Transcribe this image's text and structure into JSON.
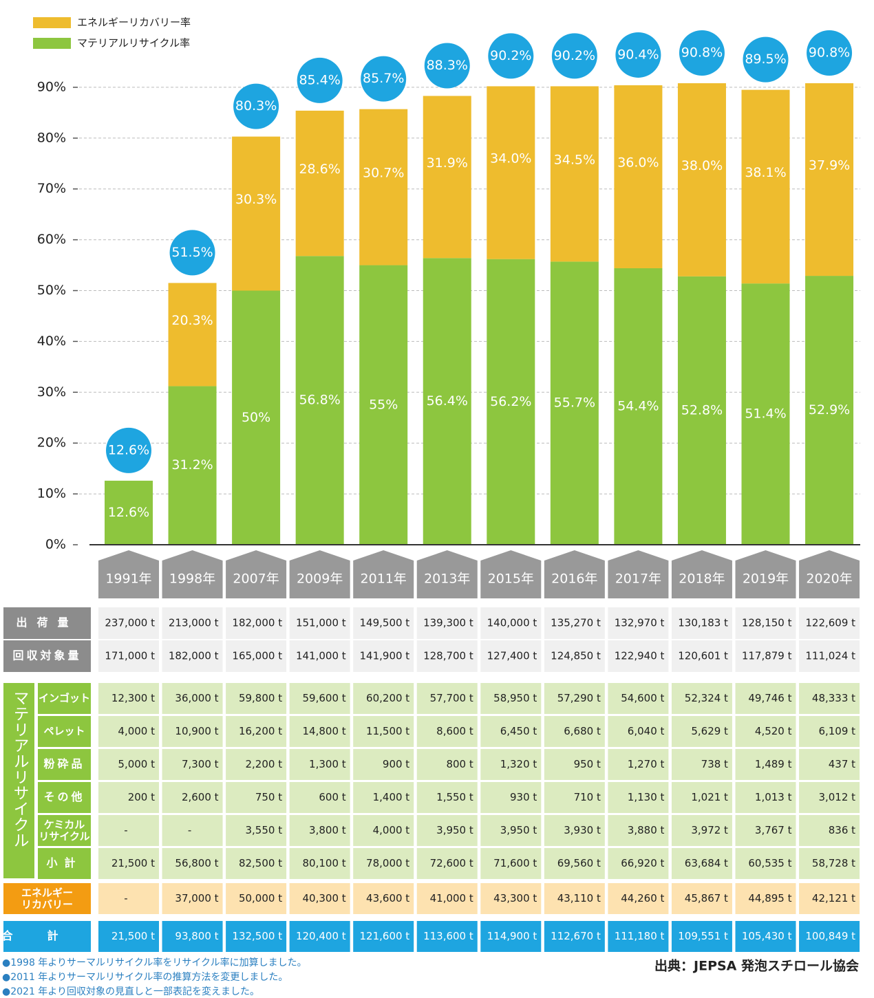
{
  "chart_data": {
    "type": "bar",
    "stacked": true,
    "categories": [
      "1991年",
      "1998年",
      "2007年",
      "2009年",
      "2011年",
      "2013年",
      "2015年",
      "2016年",
      "2017年",
      "2018年",
      "2019年",
      "2020年"
    ],
    "series": [
      {
        "name": "マテリアルリサイクル率",
        "color": "#8dc63f",
        "values": [
          12.6,
          31.2,
          50,
          56.8,
          55,
          56.4,
          56.2,
          55.7,
          54.4,
          52.8,
          51.4,
          52.9
        ],
        "value_labels": [
          "12.6%",
          "31.2%",
          "50%",
          "56.8%",
          "55%",
          "56.4%",
          "56.2%",
          "55.7%",
          "54.4%",
          "52.8%",
          "51.4%",
          "52.9%"
        ]
      },
      {
        "name": "エネルギーリカバリー率",
        "color": "#eebc2e",
        "values": [
          null,
          20.3,
          30.3,
          28.6,
          30.7,
          31.9,
          34.0,
          34.5,
          36.0,
          38.0,
          38.1,
          37.9
        ],
        "value_labels": [
          null,
          "20.3%",
          "30.3%",
          "28.6%",
          "30.7%",
          "31.9%",
          "34.0%",
          "34.5%",
          "36.0%",
          "38.0%",
          "38.1%",
          "37.9%"
        ]
      }
    ],
    "totals": {
      "color": "#1ea5e0",
      "values": [
        12.6,
        51.5,
        80.3,
        85.4,
        85.7,
        88.3,
        90.2,
        90.2,
        90.4,
        90.8,
        89.5,
        90.8
      ],
      "value_labels": [
        "12.6%",
        "51.5%",
        "80.3%",
        "85.4%",
        "85.7%",
        "88.3%",
        "90.2%",
        "90.2%",
        "90.4%",
        "90.8%",
        "89.5%",
        "90.8%"
      ]
    },
    "ylim": [
      0,
      100
    ],
    "yticks": [
      {
        "value": 0,
        "label": "0%"
      },
      {
        "value": 10,
        "label": "10%"
      },
      {
        "value": 20,
        "label": "20%"
      },
      {
        "value": 30,
        "label": "30%"
      },
      {
        "value": 40,
        "label": "40%"
      },
      {
        "value": 50,
        "label": "50%"
      },
      {
        "value": 60,
        "label": "60%"
      },
      {
        "value": 70,
        "label": "70%"
      },
      {
        "value": 80,
        "label": "80%"
      },
      {
        "value": 90,
        "label": "90%"
      }
    ],
    "grid": true,
    "legend": "top-left"
  },
  "table": {
    "rows": [
      {
        "label": "出荷量",
        "cells": [
          "237,000 t",
          "213,000 t",
          "182,000 t",
          "151,000 t",
          "149,500 t",
          "139,300 t",
          "140,000 t",
          "135,270 t",
          "132,970 t",
          "130,183 t",
          "128,150 t",
          "122,609 t"
        ]
      },
      {
        "label": "回収対象量",
        "cells": [
          "171,000 t",
          "182,000 t",
          "165,000 t",
          "141,000 t",
          "141,900 t",
          "128,700 t",
          "127,400 t",
          "124,850 t",
          "122,940 t",
          "120,601 t",
          "117,879 t",
          "111,024 t"
        ]
      }
    ],
    "material": {
      "label": "マテリアルリサイクル",
      "rows": [
        {
          "label": "インゴット",
          "cells": [
            "12,300 t",
            "36,000 t",
            "59,800 t",
            "59,600 t",
            "60,200 t",
            "57,700 t",
            "58,950 t",
            "57,290 t",
            "54,600 t",
            "52,324 t",
            "49,746 t",
            "48,333 t"
          ]
        },
        {
          "label": "ペレット",
          "cells": [
            "4,000 t",
            "10,900 t",
            "16,200 t",
            "14,800 t",
            "11,500 t",
            "8,600 t",
            "6,450 t",
            "6,680 t",
            "6,040 t",
            "5,629 t",
            "4,520 t",
            "6,109 t"
          ]
        },
        {
          "label": "粉砕品",
          "cells": [
            "5,000 t",
            "7,300 t",
            "2,200 t",
            "1,300 t",
            "900 t",
            "800 t",
            "1,320 t",
            "950 t",
            "1,270 t",
            "738 t",
            "1,489 t",
            "437 t"
          ]
        },
        {
          "label": "その他",
          "cells": [
            "200 t",
            "2,600 t",
            "750 t",
            "600 t",
            "1,400 t",
            "1,550 t",
            "930 t",
            "710 t",
            "1,130 t",
            "1,021 t",
            "1,013 t",
            "3,012 t"
          ]
        },
        {
          "label": "ケミカル\nリサイクル",
          "cells": [
            "-",
            "-",
            "3,550 t",
            "3,800 t",
            "4,000 t",
            "3,950 t",
            "3,950 t",
            "3,930 t",
            "3,880 t",
            "3,972 t",
            "3,767 t",
            "836 t"
          ]
        },
        {
          "label": "小計",
          "cells": [
            "21,500 t",
            "56,800 t",
            "82,500 t",
            "80,100 t",
            "78,000 t",
            "72,600 t",
            "71,600 t",
            "69,560 t",
            "66,920 t",
            "63,684 t",
            "60,535 t",
            "58,728 t"
          ]
        }
      ]
    },
    "energy": {
      "label": "エネルギー\nリカバリー",
      "cells": [
        "-",
        "37,000 t",
        "50,000 t",
        "40,300 t",
        "43,600 t",
        "41,000 t",
        "43,300 t",
        "43,110 t",
        "44,260 t",
        "45,867 t",
        "44,895 t",
        "42,121 t"
      ]
    },
    "total": {
      "label": "合計",
      "cells": [
        "21,500 t",
        "93,800 t",
        "132,500 t",
        "120,400 t",
        "121,600 t",
        "113,600 t",
        "114,900 t",
        "112,670 t",
        "111,180 t",
        "109,551 t",
        "105,430 t",
        "100,849 t"
      ]
    }
  },
  "notes": [
    "●1998 年よりサーマルリサイクル率をリサイクル率に加算しました。",
    "●2011 年よりサーマルリサイクル率の推算方法を変更しました。",
    "●2021 年より回収対象の見直しと一部表記を変えました。"
  ],
  "source": "出典：JEPSA 発泡スチロール協会"
}
